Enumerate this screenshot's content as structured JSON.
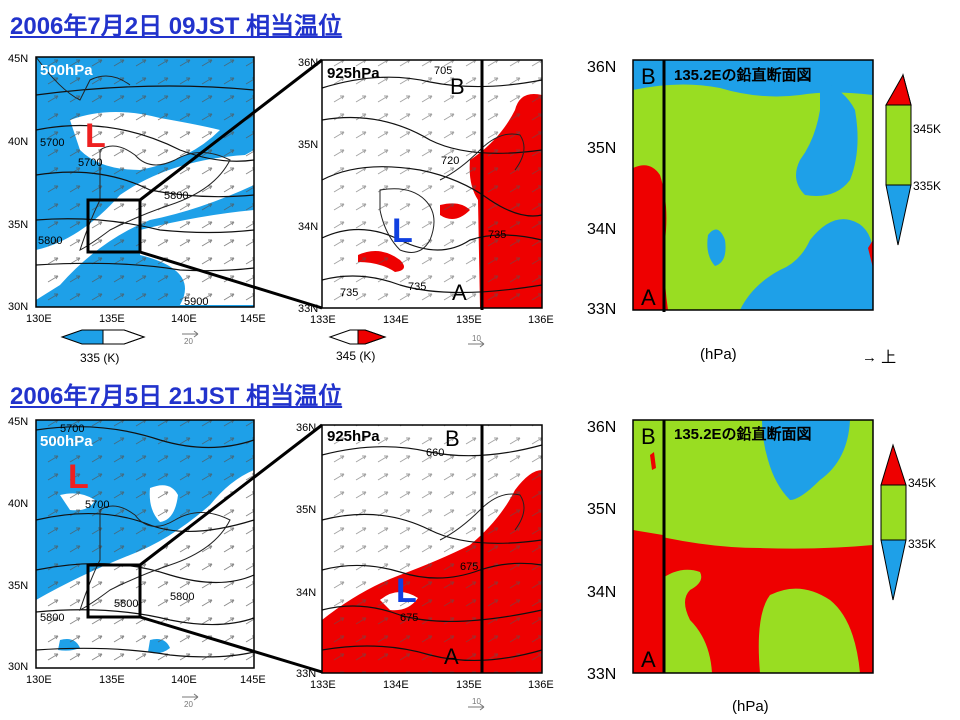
{
  "rows": [
    {
      "title": "2006年7月2日 09JST 相当温位",
      "map500": {
        "level": "500hPa",
        "low_mark": "L",
        "contour_labels": [
          "5700",
          "5700",
          "5800",
          "5800",
          "5900"
        ],
        "xticks": [
          "130E",
          "135E",
          "140E",
          "145E"
        ],
        "yticks": [
          "45N",
          "40N",
          "35N",
          "30N"
        ],
        "vector_ref": "20",
        "colorbar_label": "335 (K)"
      },
      "map925": {
        "level": "925hPa",
        "low_mark": "L",
        "contour_labels": [
          "705",
          "720",
          "735",
          "735",
          "735"
        ],
        "section_end_top": "B",
        "section_end_bottom": "A",
        "xticks": [
          "133E",
          "134E",
          "135E",
          "136E"
        ],
        "yticks": [
          "36N",
          "35N",
          "34N",
          "33N"
        ],
        "vector_ref": "10",
        "colorbar_label": "345 (K)"
      },
      "section": {
        "title": "135.2Eの鉛直断面図",
        "end_top": "B",
        "end_bottom": "A",
        "yticks": [
          "36N",
          "35N",
          "34N",
          "33N"
        ],
        "axis_label": "(hPa)",
        "direction_label": "→ 上",
        "colorbar_labels": [
          "345K",
          "335K"
        ]
      }
    },
    {
      "title": "2006年7月5日 21JST 相当温位",
      "map500": {
        "level": "500hPa",
        "low_mark": "L",
        "contour_labels": [
          "5700",
          "5700",
          "5800",
          "5800",
          "5800"
        ],
        "xticks": [
          "130E",
          "135E",
          "140E",
          "145E"
        ],
        "yticks": [
          "45N",
          "40N",
          "35N",
          "30N"
        ],
        "vector_ref": "20"
      },
      "map925": {
        "level": "925hPa",
        "low_mark": "L",
        "contour_labels": [
          "660",
          "675",
          "675"
        ],
        "section_end_top": "B",
        "section_end_bottom": "A",
        "xticks": [
          "133E",
          "134E",
          "135E",
          "136E"
        ],
        "yticks": [
          "36N",
          "35N",
          "34N",
          "33N"
        ],
        "vector_ref": "10"
      },
      "section": {
        "title": "135.2Eの鉛直断面図",
        "end_top": "B",
        "end_bottom": "A",
        "yticks": [
          "36N",
          "35N",
          "34N",
          "33N"
        ],
        "axis_label": "(hPa)",
        "colorbar_labels": [
          "345K",
          "335K"
        ]
      }
    }
  ],
  "colors": {
    "title": "#2233cc",
    "low": "#1040e0",
    "low_500": "#ee2020",
    "warm": "#ee0000",
    "mid": "#99dd22",
    "cool": "#1ea0e8"
  },
  "chart_data": [
    {
      "type": "heatmap",
      "title": "500hPa",
      "xlim": [
        130,
        145
      ],
      "ylim": [
        30,
        45
      ],
      "xticklabels": [
        "130E",
        "135E",
        "140E",
        "145E"
      ],
      "yticklabels": [
        "30N",
        "35N",
        "40N",
        "45N"
      ],
      "shading": {
        "335 (K)": ">=335K"
      },
      "contours_m": [
        5700,
        5800,
        5900
      ]
    },
    {
      "type": "heatmap",
      "title": "925hPa",
      "xlim": [
        133,
        136
      ],
      "ylim": [
        33,
        36
      ],
      "xticklabels": [
        "133E",
        "134E",
        "135E",
        "136E"
      ],
      "yticklabels": [
        "33N",
        "34N",
        "35N",
        "36N"
      ],
      "shading": {
        "345 (K)": ">=345K"
      },
      "contours_m": [
        705,
        720,
        735
      ],
      "section_line_lon": 135.2
    },
    {
      "type": "heatmap",
      "title": "135.2Eの鉛直断面図",
      "ylim": [
        33,
        36
      ],
      "yticklabels": [
        "33N",
        "34N",
        "35N",
        "36N"
      ],
      "colorbar": [
        "335K",
        "345K"
      ]
    },
    {
      "type": "heatmap",
      "title": "500hPa",
      "xlim": [
        130,
        145
      ],
      "ylim": [
        30,
        45
      ],
      "xticklabels": [
        "130E",
        "135E",
        "140E",
        "145E"
      ],
      "yticklabels": [
        "30N",
        "35N",
        "40N",
        "45N"
      ],
      "contours_m": [
        5700,
        5800
      ]
    },
    {
      "type": "heatmap",
      "title": "925hPa",
      "xlim": [
        133,
        136
      ],
      "ylim": [
        33,
        36
      ],
      "xticklabels": [
        "133E",
        "134E",
        "135E",
        "136E"
      ],
      "yticklabels": [
        "33N",
        "34N",
        "35N",
        "36N"
      ],
      "contours_m": [
        660,
        675
      ],
      "section_line_lon": 135.2
    },
    {
      "type": "heatmap",
      "title": "135.2Eの鉛直断面図",
      "ylim": [
        33,
        36
      ],
      "yticklabels": [
        "33N",
        "34N",
        "35N",
        "36N"
      ],
      "colorbar": [
        "335K",
        "345K"
      ]
    }
  ]
}
